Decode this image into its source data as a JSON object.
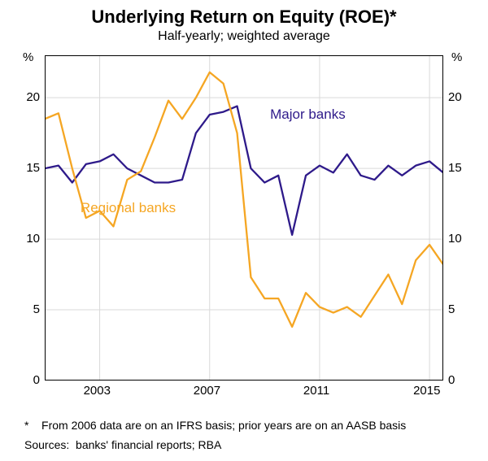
{
  "chart": {
    "type": "line",
    "title": "Underlying Return on Equity (ROE)*",
    "subtitle": "Half-yearly; weighted average",
    "y_unit_left": "%",
    "y_unit_right": "%",
    "ylim": [
      0,
      23
    ],
    "ytick_values": [
      0,
      5,
      10,
      15,
      20
    ],
    "ytick_labels": [
      "0",
      "5",
      "10",
      "15",
      "20"
    ],
    "x_range": [
      2001,
      2015.5
    ],
    "xtick_values": [
      2003,
      2007,
      2011,
      2015
    ],
    "xtick_labels": [
      "2003",
      "2007",
      "2011",
      "2015"
    ],
    "grid_color": "#d9d9d9",
    "background_color": "#ffffff",
    "border_color": "#000000",
    "series": {
      "major_banks": {
        "label": "Major banks",
        "label_pos": {
          "x": 2009.2,
          "y": 18.8
        },
        "color": "#2e1a8a",
        "line_width": 2.3,
        "data": [
          [
            2001.0,
            15.0
          ],
          [
            2001.5,
            15.2
          ],
          [
            2002.0,
            14.0
          ],
          [
            2002.5,
            15.3
          ],
          [
            2003.0,
            15.5
          ],
          [
            2003.5,
            16.0
          ],
          [
            2004.0,
            15.0
          ],
          [
            2004.5,
            14.5
          ],
          [
            2005.0,
            14.0
          ],
          [
            2005.5,
            14.0
          ],
          [
            2006.0,
            14.2
          ],
          [
            2006.5,
            17.5
          ],
          [
            2007.0,
            18.8
          ],
          [
            2007.5,
            19.0
          ],
          [
            2008.0,
            19.4
          ],
          [
            2008.5,
            15.0
          ],
          [
            2009.0,
            14.0
          ],
          [
            2009.5,
            14.5
          ],
          [
            2010.0,
            10.3
          ],
          [
            2010.5,
            14.5
          ],
          [
            2011.0,
            15.2
          ],
          [
            2011.5,
            14.7
          ],
          [
            2012.0,
            16.0
          ],
          [
            2012.5,
            14.5
          ],
          [
            2013.0,
            14.2
          ],
          [
            2013.5,
            15.2
          ],
          [
            2014.0,
            14.5
          ],
          [
            2014.5,
            15.2
          ],
          [
            2015.0,
            15.5
          ],
          [
            2015.5,
            14.7
          ]
        ]
      },
      "regional_banks": {
        "label": "Regional banks",
        "label_pos": {
          "x": 2002.3,
          "y": 12.2
        },
        "color": "#f5a623",
        "line_width": 2.3,
        "data": [
          [
            2001.0,
            18.5
          ],
          [
            2001.5,
            18.9
          ],
          [
            2002.0,
            15.0
          ],
          [
            2002.5,
            11.5
          ],
          [
            2003.0,
            12.0
          ],
          [
            2003.5,
            10.9
          ],
          [
            2004.0,
            14.2
          ],
          [
            2004.5,
            14.8
          ],
          [
            2005.0,
            17.2
          ],
          [
            2005.5,
            19.8
          ],
          [
            2006.0,
            18.5
          ],
          [
            2006.5,
            20.0
          ],
          [
            2007.0,
            21.8
          ],
          [
            2007.5,
            21.0
          ],
          [
            2008.0,
            17.5
          ],
          [
            2008.5,
            7.3
          ],
          [
            2009.0,
            5.8
          ],
          [
            2009.5,
            5.8
          ],
          [
            2010.0,
            3.8
          ],
          [
            2010.5,
            6.2
          ],
          [
            2011.0,
            5.2
          ],
          [
            2011.5,
            4.8
          ],
          [
            2012.0,
            5.2
          ],
          [
            2012.5,
            4.5
          ],
          [
            2013.0,
            6.0
          ],
          [
            2013.5,
            7.5
          ],
          [
            2014.0,
            5.4
          ],
          [
            2014.5,
            8.5
          ],
          [
            2015.0,
            9.6
          ],
          [
            2015.5,
            8.2
          ]
        ]
      }
    },
    "footnote_marker": "*",
    "footnote_text": "From 2006 data are on an IFRS basis; prior years are on an AASB basis",
    "sources_label": "Sources:",
    "sources_text": "banks' financial reports; RBA"
  }
}
